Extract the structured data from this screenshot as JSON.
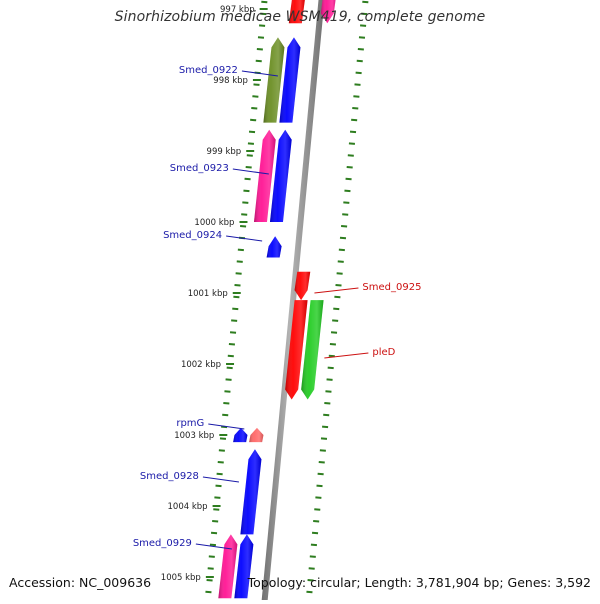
{
  "title": "Sinorhizobium medicae WSM419, complete genome",
  "footer": {
    "accession": "Accession: NC_009636",
    "topology": "Topology: circular; Length: 3,781,904 bp; Genes: 3,592"
  },
  "colors": {
    "backbone": "#8a8a8a",
    "dots": "#2e7d1f",
    "label_blue": "#1a1aa8",
    "label_red": "#cc1111"
  },
  "ticks": [
    "997 kbp",
    "998 kbp",
    "999 kbp",
    "1000 kbp",
    "1001 kbp",
    "1002 kbp",
    "1003 kbp",
    "1004 kbp",
    "1005 kbp"
  ],
  "genes": [
    {
      "label": "",
      "strand": "+",
      "start_kbp": 996.7,
      "end_kbp": 997.2,
      "color": "#ff0000"
    },
    {
      "label": "",
      "strand": "-",
      "start_kbp": 996.7,
      "end_kbp": 997.2,
      "color": "#ff1493"
    },
    {
      "label": "Smed_0922",
      "strand": "+",
      "start_kbp": 997.4,
      "end_kbp": 998.6,
      "color": "#0000ff"
    },
    {
      "label": "",
      "strand": "+",
      "start_kbp": 997.4,
      "end_kbp": 998.6,
      "color": "#6b8e23"
    },
    {
      "label": "Smed_0923",
      "strand": "+",
      "start_kbp": 998.7,
      "end_kbp": 1000.0,
      "color": "#0000ff"
    },
    {
      "label": "",
      "strand": "+",
      "start_kbp": 998.7,
      "end_kbp": 1000.0,
      "color": "#ff1493"
    },
    {
      "label": "Smed_0924",
      "strand": "+",
      "start_kbp": 1000.2,
      "end_kbp": 1000.5,
      "color": "#0000ff"
    },
    {
      "label": "Smed_0925",
      "strand": "-",
      "start_kbp": 1000.7,
      "end_kbp": 1001.1,
      "color": "#ff0000"
    },
    {
      "label": "",
      "strand": "-",
      "start_kbp": 1001.1,
      "end_kbp": 1002.5,
      "color": "#ff0000"
    },
    {
      "label": "pleD",
      "strand": "-",
      "start_kbp": 1001.1,
      "end_kbp": 1002.5,
      "color": "#22cc22"
    },
    {
      "label": "rpmG",
      "strand": "+",
      "start_kbp": 1002.9,
      "end_kbp": 1003.1,
      "color": "#ff6666"
    },
    {
      "label": "",
      "strand": "+",
      "start_kbp": 1002.9,
      "end_kbp": 1003.1,
      "color": "#0000ff"
    },
    {
      "label": "Smed_0928",
      "strand": "+",
      "start_kbp": 1003.2,
      "end_kbp": 1004.4,
      "color": "#0000ff"
    },
    {
      "label": "Smed_0929",
      "strand": "+",
      "start_kbp": 1004.4,
      "end_kbp": 1005.3,
      "color": "#0000ff"
    },
    {
      "label": "",
      "strand": "+",
      "start_kbp": 1004.4,
      "end_kbp": 1005.3,
      "color": "#ff1493"
    }
  ]
}
